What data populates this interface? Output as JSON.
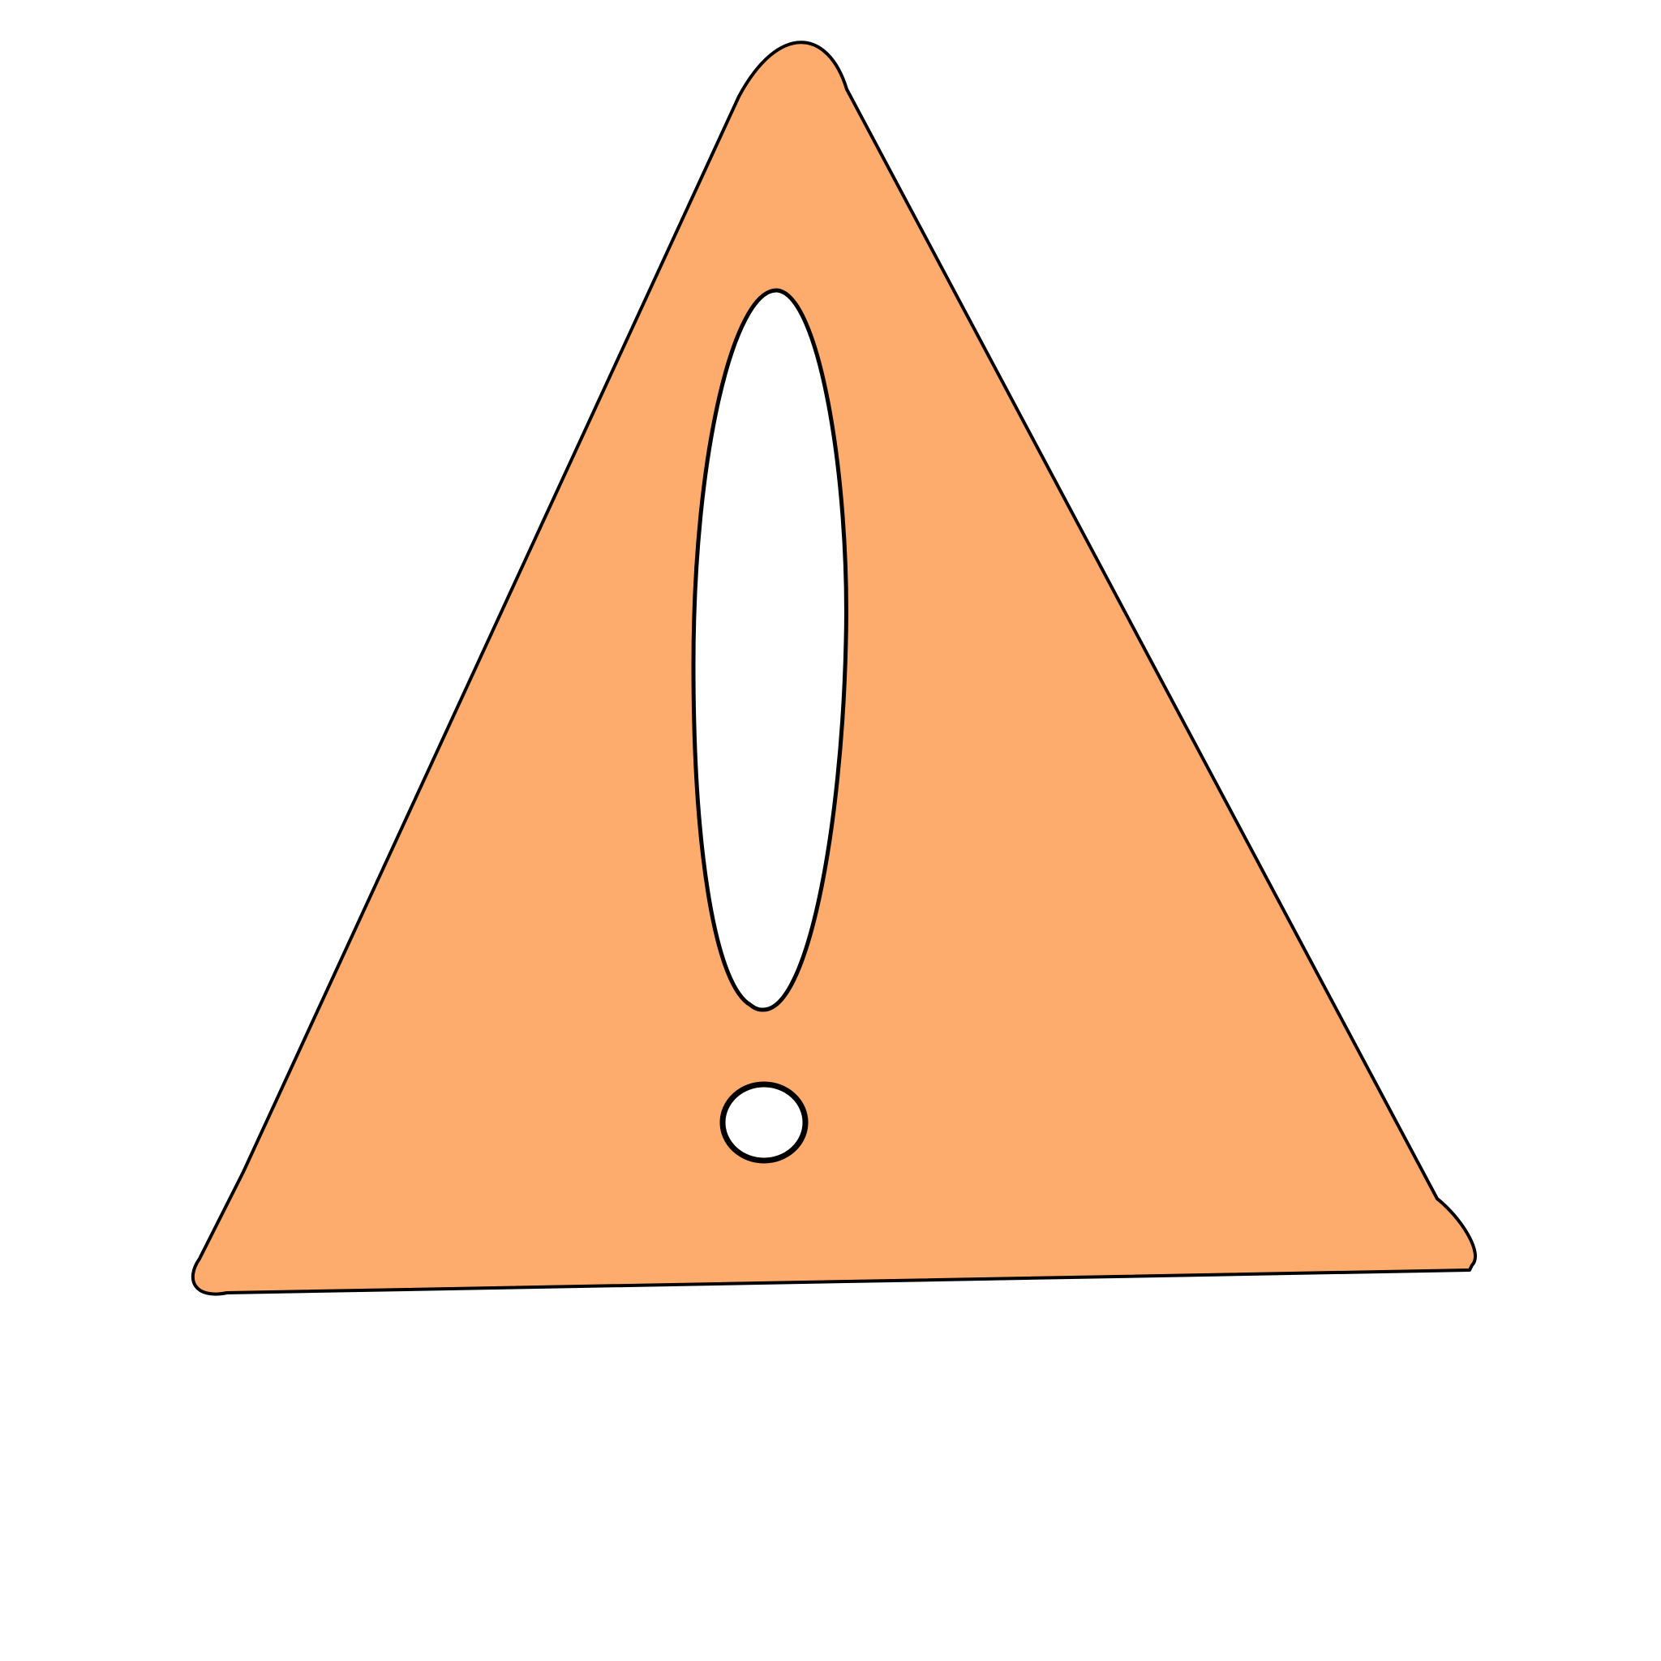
{
  "image": {
    "subject": "warning-sign-icon",
    "colors": {
      "background": "#ffffff",
      "triangle_fill": "#feac6d",
      "outline": "#000000",
      "cutout_fill": "#ffffff"
    }
  }
}
